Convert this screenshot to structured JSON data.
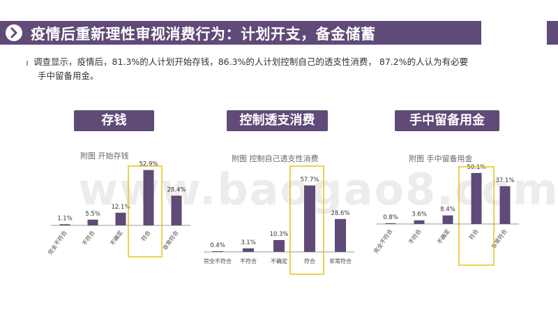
{
  "header": {
    "title": "疫情后重新理性审视消费行为：计划开支，备金储蓄"
  },
  "intro": {
    "line1": "调查显示，疫情后，81.3%的人计划开始存钱，86.3%的人计划控制自己的透支性消费，    87.2%的人认为有必要",
    "line2": "手中留备用金。"
  },
  "sections": [
    {
      "label": "存钱",
      "chart_title": "附图 开始存钱"
    },
    {
      "label": "控制透支消费",
      "chart_title": "附图 控制自己透支性消费"
    },
    {
      "label": "手中留备用金",
      "chart_title": "附图 手中留备用金"
    }
  ],
  "watermark": "www.baogao8.com",
  "colors": {
    "bar": "#5f4a78",
    "highlight_box": "#e6c21a",
    "baseline": "#9a9a9a"
  },
  "chart_data": [
    {
      "type": "bar",
      "title": "附图 开始存钱",
      "categories": [
        "完全不符合",
        "不符合",
        "不确定",
        "符合",
        "非常符合"
      ],
      "values": [
        1.1,
        5.5,
        12.1,
        52.9,
        28.4
      ],
      "value_labels": [
        "1.1%",
        "5.5%",
        "12.1%",
        "52.9%",
        "28.4%"
      ],
      "highlighted_category": "符合",
      "tick_label_rotation": "rotated",
      "ylim": [
        0,
        100
      ]
    },
    {
      "type": "bar",
      "title": "附图 控制自己透支性消费",
      "categories": [
        "完全不符合",
        "不符合",
        "不确定",
        "符合",
        "非常符合"
      ],
      "values": [
        0.4,
        3.1,
        10.3,
        57.7,
        28.6
      ],
      "value_labels": [
        "0.4%",
        "3.1%",
        "10.3%",
        "57.7%",
        "28.6%"
      ],
      "highlighted_category": "符合",
      "tick_label_rotation": "horizontal",
      "ylim": [
        0,
        100
      ]
    },
    {
      "type": "bar",
      "title": "附图 手中留备用金",
      "categories": [
        "完全不符合",
        "不符合",
        "不确定",
        "符合",
        "非常符合"
      ],
      "values": [
        0.8,
        3.6,
        8.4,
        50.1,
        37.1
      ],
      "value_labels": [
        "0.8%",
        "3.6%",
        "8.4%",
        "50.1%",
        "37.1%"
      ],
      "highlighted_category": "符合",
      "tick_label_rotation": "rotated",
      "ylim": [
        0,
        100
      ]
    }
  ]
}
